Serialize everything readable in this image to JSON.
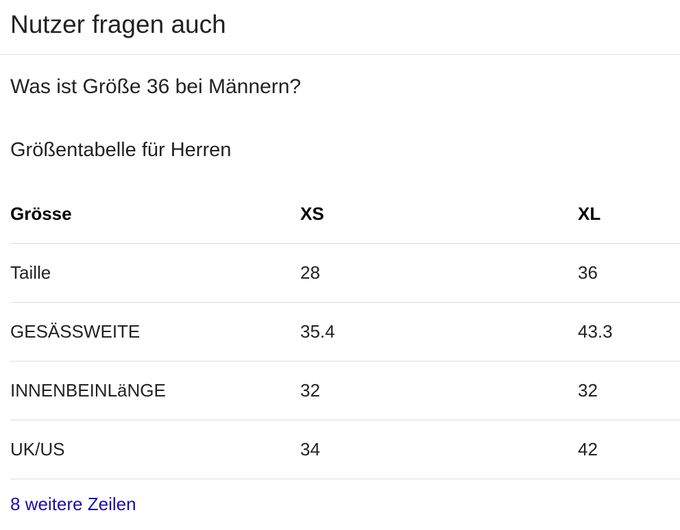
{
  "section": {
    "title": "Nutzer fragen auch"
  },
  "question": {
    "text": "Was ist Größe 36 bei Männern?"
  },
  "answer": {
    "title": "Größentabelle für Herren",
    "table": {
      "headers": [
        "Grösse",
        "XS",
        "XL"
      ],
      "rows": [
        [
          "Taille",
          "28",
          "36"
        ],
        [
          "GESÄSSWEITE",
          "35.4",
          "43.3"
        ],
        [
          "INNENBEINLäNGE",
          "32",
          "32"
        ],
        [
          "UK/US",
          "34",
          "42"
        ]
      ]
    },
    "more_rows_link": "8 weitere Zeilen"
  }
}
